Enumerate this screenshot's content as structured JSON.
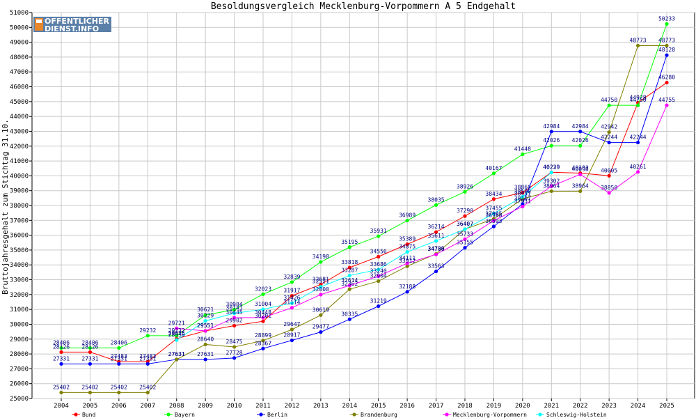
{
  "chart_data": {
    "type": "line",
    "title": "Besoldungsvergleich Mecklenburg-Vorpommern A 5 Endgehalt",
    "ylabel": "Bruttojahresgehalt zum Stichtag 31.10.",
    "xlabel": "",
    "ylim": [
      25000,
      51000
    ],
    "grid": true,
    "legend_position": "bottom",
    "categories": [
      "2004",
      "2005",
      "2006",
      "2007",
      "2008",
      "2009",
      "2010",
      "2011",
      "2012",
      "2013",
      "2014",
      "2015",
      "2016",
      "2017",
      "2018",
      "2019",
      "2020",
      "2021",
      "2022",
      "2023",
      "2024",
      "2025"
    ],
    "y_ticks": [
      25000,
      26000,
      27000,
      28000,
      29000,
      30000,
      31000,
      32000,
      33000,
      34000,
      35000,
      36000,
      37000,
      38000,
      39000,
      40000,
      41000,
      42000,
      43000,
      44000,
      45000,
      46000,
      47000,
      48000,
      49000,
      50000,
      51000
    ],
    "series": [
      {
        "name": "Bund",
        "color": "#ff0000",
        "values": [
          28126,
          28126,
          27483,
          27483,
          29025,
          29551,
          29902,
          30201,
          31917,
          32681,
          33818,
          34556,
          35389,
          36214,
          37290,
          38434,
          38869,
          40239,
          40183,
          40005,
          44928,
          46280
        ]
      },
      {
        "name": "Bayern",
        "color": "#00ff00",
        "values": [
          28406,
          28406,
          28406,
          29232,
          29232,
          30621,
          30984,
          32023,
          32839,
          34198,
          35195,
          35931,
          36989,
          38035,
          38926,
          40167,
          41448,
          42026,
          42026,
          44750,
          44750,
          50233
        ]
      },
      {
        "name": "Berlin",
        "color": "#0000ff",
        "values": [
          27331,
          27331,
          27331,
          27331,
          27631,
          27631,
          27728,
          28367,
          28917,
          29477,
          30335,
          31219,
          32188,
          33563,
          35155,
          36593,
          38107,
          42984,
          42984,
          42244,
          42244,
          48128
        ]
      },
      {
        "name": "Brandenburg",
        "color": "#808000",
        "values": [
          25402,
          25402,
          25402,
          25402,
          27631,
          28640,
          28475,
          28899,
          29647,
          30619,
          32362,
          32904,
          33912,
          34739,
          36407,
          37095,
          38451,
          38964,
          38964,
          42942,
          48773,
          48773
        ]
      },
      {
        "name": "Mecklenburg-Vorpommern",
        "color": "#ff00ff",
        "values": [
          null,
          null,
          null,
          null,
          29721,
          29551,
          30445,
          30448,
          31114,
          32000,
          32614,
          33240,
          34111,
          34706,
          35733,
          36988,
          37931,
          39302,
          40098,
          38850,
          40261,
          44755
        ]
      },
      {
        "name": "Schleswig-Holstein",
        "color": "#00ffff",
        "values": [
          null,
          null,
          null,
          null,
          28936,
          30229,
          30741,
          31004,
          31426,
          32521,
          33287,
          33686,
          34875,
          35611,
          36407,
          37455,
          38590,
          40229,
          null,
          null,
          null,
          null
        ]
      }
    ]
  },
  "logo": {
    "line1": "OFFENTLICHER",
    "line2": "DIENST.INFO"
  }
}
